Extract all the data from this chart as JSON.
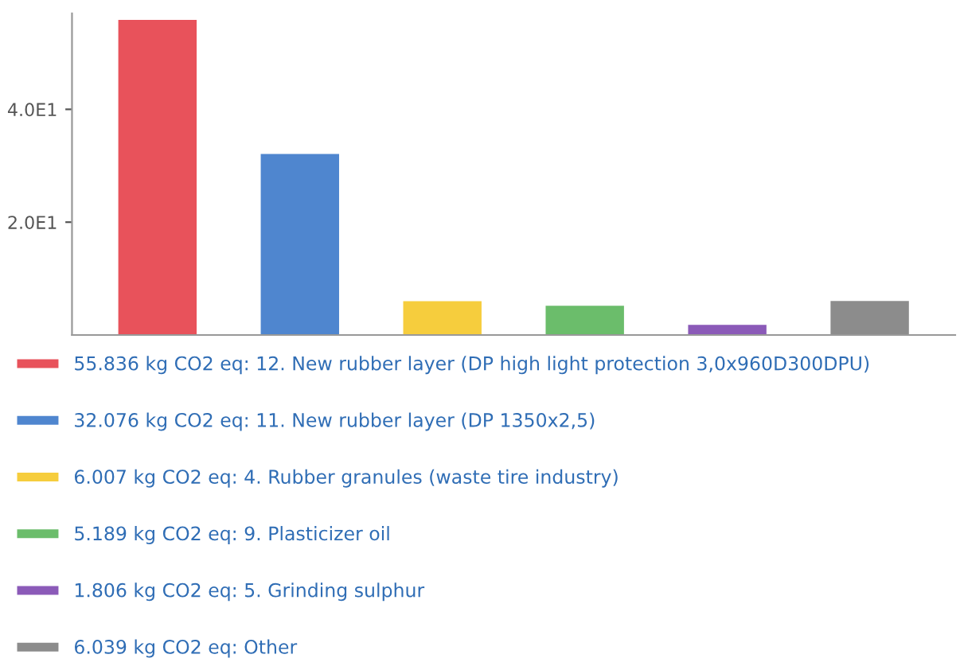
{
  "chart_data": {
    "type": "bar",
    "categories": [
      null,
      null,
      null,
      null,
      null,
      null
    ],
    "series": [
      {
        "name": "55.836 kg CO2 eq: 12. New rubber layer (DP high light protection 3,0x960D300DPU)",
        "color": "#e8525b",
        "values": [
          55.836,
          null,
          null,
          null,
          null,
          null
        ]
      },
      {
        "name": "32.076 kg CO2 eq: 11. New rubber layer (DP 1350x2,5)",
        "color": "#4f86cf",
        "values": [
          null,
          32.076,
          null,
          null,
          null,
          null
        ]
      },
      {
        "name": "6.007 kg CO2 eq: 4. Rubber granules (waste tire industry)",
        "color": "#f6cd3d",
        "values": [
          null,
          null,
          6.007,
          null,
          null,
          null
        ]
      },
      {
        "name": "5.189 kg CO2 eq: 9. Plasticizer oil",
        "color": "#6bbd6b",
        "values": [
          null,
          null,
          null,
          5.189,
          null,
          null
        ]
      },
      {
        "name": "1.806 kg CO2 eq: 5. Grinding sulphur",
        "color": "#8b5ab8",
        "values": [
          null,
          null,
          null,
          null,
          1.806,
          null
        ]
      },
      {
        "name": "6.039 kg CO2 eq: Other",
        "color": "#8c8c8c",
        "values": [
          null,
          null,
          null,
          null,
          null,
          6.039
        ]
      }
    ],
    "ylim": [
      0,
      57
    ],
    "yticks": [
      {
        "value": 20,
        "label": "2.0E1"
      },
      {
        "value": 40,
        "label": "4.0E1"
      }
    ],
    "tick_labels": "y",
    "grid": false,
    "legend": "bottom"
  }
}
